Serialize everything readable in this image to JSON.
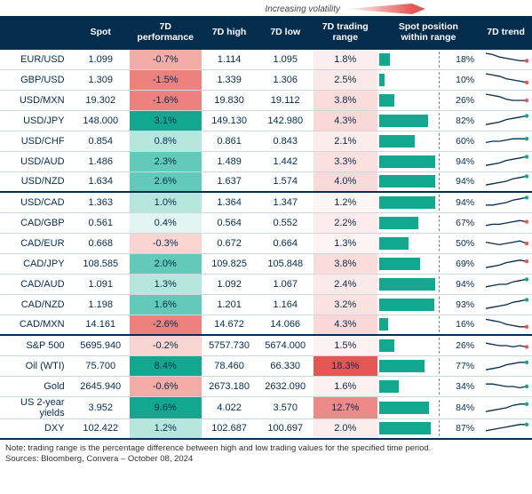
{
  "legend": {
    "label": "Increasing volatility",
    "gradient": [
      "#ffffff",
      "#f9d5d2",
      "#f3aba8",
      "#ec817e",
      "#e55754"
    ]
  },
  "columns": [
    {
      "key": "name",
      "label": ""
    },
    {
      "key": "spot",
      "label": "Spot"
    },
    {
      "key": "perf",
      "label": "7D\nperformance"
    },
    {
      "key": "high",
      "label": "7D high"
    },
    {
      "key": "low",
      "label": "7D low"
    },
    {
      "key": "range",
      "label": "7D trading\nrange"
    },
    {
      "key": "pos",
      "label": "Spot position\nwithin range"
    },
    {
      "key": "trend",
      "label": "7D trend"
    }
  ],
  "palette": {
    "pos_strong": "#12a88f",
    "pos_med": "#63c9b9",
    "pos_light": "#b7e6de",
    "pos_faint": "#e2f5f1",
    "neg_strong": "#e55754",
    "neg_med": "#ec817e",
    "neg_light": "#f3aba8",
    "neg_faint": "#f9d5d2",
    "bar_fill": "#12a88f",
    "spark_line": "#042c4d",
    "spark_dot_up": "#12a88f",
    "spark_dot_down": "#e55754",
    "header_bg": "#042c4d"
  },
  "sections": [
    {
      "rows": [
        {
          "name": "EUR/USD",
          "spot": "1.099",
          "perf": -0.7,
          "high": "1.114",
          "low": "1.095",
          "range": 1.8,
          "pos": 18,
          "spark": [
            10,
            9,
            7,
            6,
            5,
            4,
            4
          ],
          "spark_up": false
        },
        {
          "name": "GBP/USD",
          "spot": "1.309",
          "perf": -1.5,
          "high": "1.339",
          "low": "1.306",
          "range": 2.5,
          "pos": 10,
          "spark": [
            10,
            9,
            8,
            6,
            5,
            4,
            3
          ],
          "spark_up": false
        },
        {
          "name": "USD/MXN",
          "spot": "19.302",
          "perf": -1.6,
          "high": "19.830",
          "low": "19.112",
          "range": 3.8,
          "pos": 26,
          "spark": [
            10,
            9,
            8,
            6,
            5,
            5,
            5
          ],
          "spark_up": false
        },
        {
          "name": "USD/JPY",
          "spot": "148.000",
          "perf": 3.1,
          "high": "149.130",
          "low": "142.980",
          "range": 4.3,
          "pos": 82,
          "spark": [
            2,
            3,
            4,
            6,
            7,
            8,
            9
          ],
          "spark_up": true
        },
        {
          "name": "USD/CHF",
          "spot": "0.854",
          "perf": 0.8,
          "high": "0.861",
          "low": "0.843",
          "range": 2.1,
          "pos": 60,
          "spark": [
            4,
            5,
            5,
            6,
            7,
            7,
            7
          ],
          "spark_up": true
        },
        {
          "name": "USD/AUD",
          "spot": "1.486",
          "perf": 2.3,
          "high": "1.489",
          "low": "1.442",
          "range": 3.3,
          "pos": 94,
          "spark": [
            2,
            3,
            4,
            6,
            7,
            8,
            9
          ],
          "spark_up": true
        },
        {
          "name": "USD/NZD",
          "spot": "1.634",
          "perf": 2.6,
          "high": "1.637",
          "low": "1.574",
          "range": 4.0,
          "pos": 94,
          "spark": [
            2,
            3,
            4,
            5,
            7,
            8,
            9
          ],
          "spark_up": true
        }
      ]
    },
    {
      "rows": [
        {
          "name": "USD/CAD",
          "spot": "1.363",
          "perf": 1.0,
          "high": "1.364",
          "low": "1.347",
          "range": 1.2,
          "pos": 94,
          "spark": [
            3,
            3,
            4,
            5,
            7,
            8,
            9
          ],
          "spark_up": true
        },
        {
          "name": "CAD/GBP",
          "spot": "0.561",
          "perf": 0.4,
          "high": "0.564",
          "low": "0.552",
          "range": 2.2,
          "pos": 67,
          "spark": [
            3,
            4,
            4,
            5,
            6,
            7,
            6
          ],
          "spark_up": false
        },
        {
          "name": "CAD/EUR",
          "spot": "0.668",
          "perf": -0.3,
          "high": "0.672",
          "low": "0.664",
          "range": 1.3,
          "pos": 50,
          "spark": [
            6,
            5,
            4,
            5,
            6,
            7,
            5
          ],
          "spark_up": false
        },
        {
          "name": "CAD/JPY",
          "spot": "108.585",
          "perf": 2.0,
          "high": "109.825",
          "low": "105.848",
          "range": 3.8,
          "pos": 69,
          "spark": [
            2,
            3,
            4,
            6,
            7,
            8,
            7
          ],
          "spark_up": false
        },
        {
          "name": "CAD/AUD",
          "spot": "1.091",
          "perf": 1.3,
          "high": "1.092",
          "low": "1.067",
          "range": 2.4,
          "pos": 94,
          "spark": [
            3,
            4,
            5,
            5,
            7,
            8,
            9
          ],
          "spark_up": true
        },
        {
          "name": "CAD/NZD",
          "spot": "1.198",
          "perf": 1.6,
          "high": "1.201",
          "low": "1.164",
          "range": 3.2,
          "pos": 93,
          "spark": [
            2,
            3,
            4,
            5,
            7,
            8,
            9
          ],
          "spark_up": true
        },
        {
          "name": "CAD/MXN",
          "spot": "14.161",
          "perf": -2.6,
          "high": "14.672",
          "low": "14.066",
          "range": 4.3,
          "pos": 16,
          "spark": [
            9,
            8,
            7,
            5,
            4,
            3,
            3
          ],
          "spark_up": false
        }
      ]
    },
    {
      "rows": [
        {
          "name": "S&P 500",
          "spot": "5695.940",
          "perf": -0.2,
          "high": "5757.730",
          "low": "5674.000",
          "range": 1.5,
          "pos": 26,
          "spark": [
            7,
            6,
            5,
            5,
            4,
            5,
            4
          ],
          "spark_up": false
        },
        {
          "name": "Oil (WTI)",
          "spot": "75.700",
          "perf": 8.4,
          "high": "78.460",
          "low": "66.330",
          "range": 18.3,
          "pos": 77,
          "spark": [
            2,
            3,
            4,
            6,
            7,
            8,
            8
          ],
          "spark_up": true
        },
        {
          "name": "Gold",
          "spot": "2645.940",
          "perf": -0.6,
          "high": "2673.180",
          "low": "2632.090",
          "range": 1.6,
          "pos": 34,
          "spark": [
            7,
            7,
            6,
            5,
            5,
            4,
            5
          ],
          "spark_up": true
        },
        {
          "name": "US 2-year yields",
          "spot": "3.952",
          "perf": 9.6,
          "high": "4.022",
          "low": "3.570",
          "range": 12.7,
          "pos": 84,
          "spark": [
            2,
            3,
            4,
            5,
            7,
            8,
            8
          ],
          "spark_up": true
        },
        {
          "name": "DXY",
          "spot": "102.422",
          "perf": 1.2,
          "high": "102.687",
          "low": "100.697",
          "range": 2.0,
          "pos": 87,
          "spark": [
            3,
            4,
            5,
            6,
            7,
            8,
            8
          ],
          "spark_up": true
        }
      ]
    }
  ],
  "range_max": 18.3,
  "notes": [
    "Note: trading range is the percentage difference between high and low trading values for the specified time period.",
    "Sources: Bloomberg, Convera – October 08, 2024"
  ]
}
